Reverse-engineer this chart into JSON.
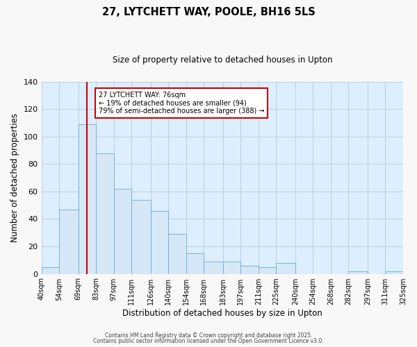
{
  "title": "27, LYTCHETT WAY, POOLE, BH16 5LS",
  "subtitle": "Size of property relative to detached houses in Upton",
  "xlabel": "Distribution of detached houses by size in Upton",
  "ylabel": "Number of detached properties",
  "bar_edges": [
    40,
    54,
    69,
    83,
    97,
    111,
    126,
    140,
    154,
    168,
    183,
    197,
    211,
    225,
    240,
    254,
    268,
    282,
    297,
    311,
    325
  ],
  "bar_heights": [
    5,
    47,
    109,
    88,
    62,
    54,
    46,
    29,
    15,
    9,
    9,
    6,
    5,
    8,
    0,
    0,
    0,
    2,
    0,
    2
  ],
  "bar_color": "#d6e8f7",
  "bar_edge_color": "#7ab0d8",
  "property_line_x": 76,
  "property_line_color": "#cc0000",
  "ylim": [
    0,
    140
  ],
  "yticks": [
    0,
    20,
    40,
    60,
    80,
    100,
    120,
    140
  ],
  "tick_labels": [
    "40sqm",
    "54sqm",
    "69sqm",
    "83sqm",
    "97sqm",
    "111sqm",
    "126sqm",
    "140sqm",
    "154sqm",
    "168sqm",
    "183sqm",
    "197sqm",
    "211sqm",
    "225sqm",
    "240sqm",
    "254sqm",
    "268sqm",
    "282sqm",
    "297sqm",
    "311sqm",
    "325sqm"
  ],
  "annotation_title": "27 LYTCHETT WAY: 76sqm",
  "annotation_line1": "← 19% of detached houses are smaller (94)",
  "annotation_line2": "79% of semi-detached houses are larger (388) →",
  "annotation_box_color": "#ffffff",
  "annotation_border_color": "#cc0000",
  "footer1": "Contains HM Land Registry data © Crown copyright and database right 2025.",
  "footer2": "Contains public sector information licensed under the Open Government Licence v3.0.",
  "background_color": "#f8f8f8",
  "plot_bg_color": "#ddeeff",
  "grid_color": "#b8cfe0"
}
